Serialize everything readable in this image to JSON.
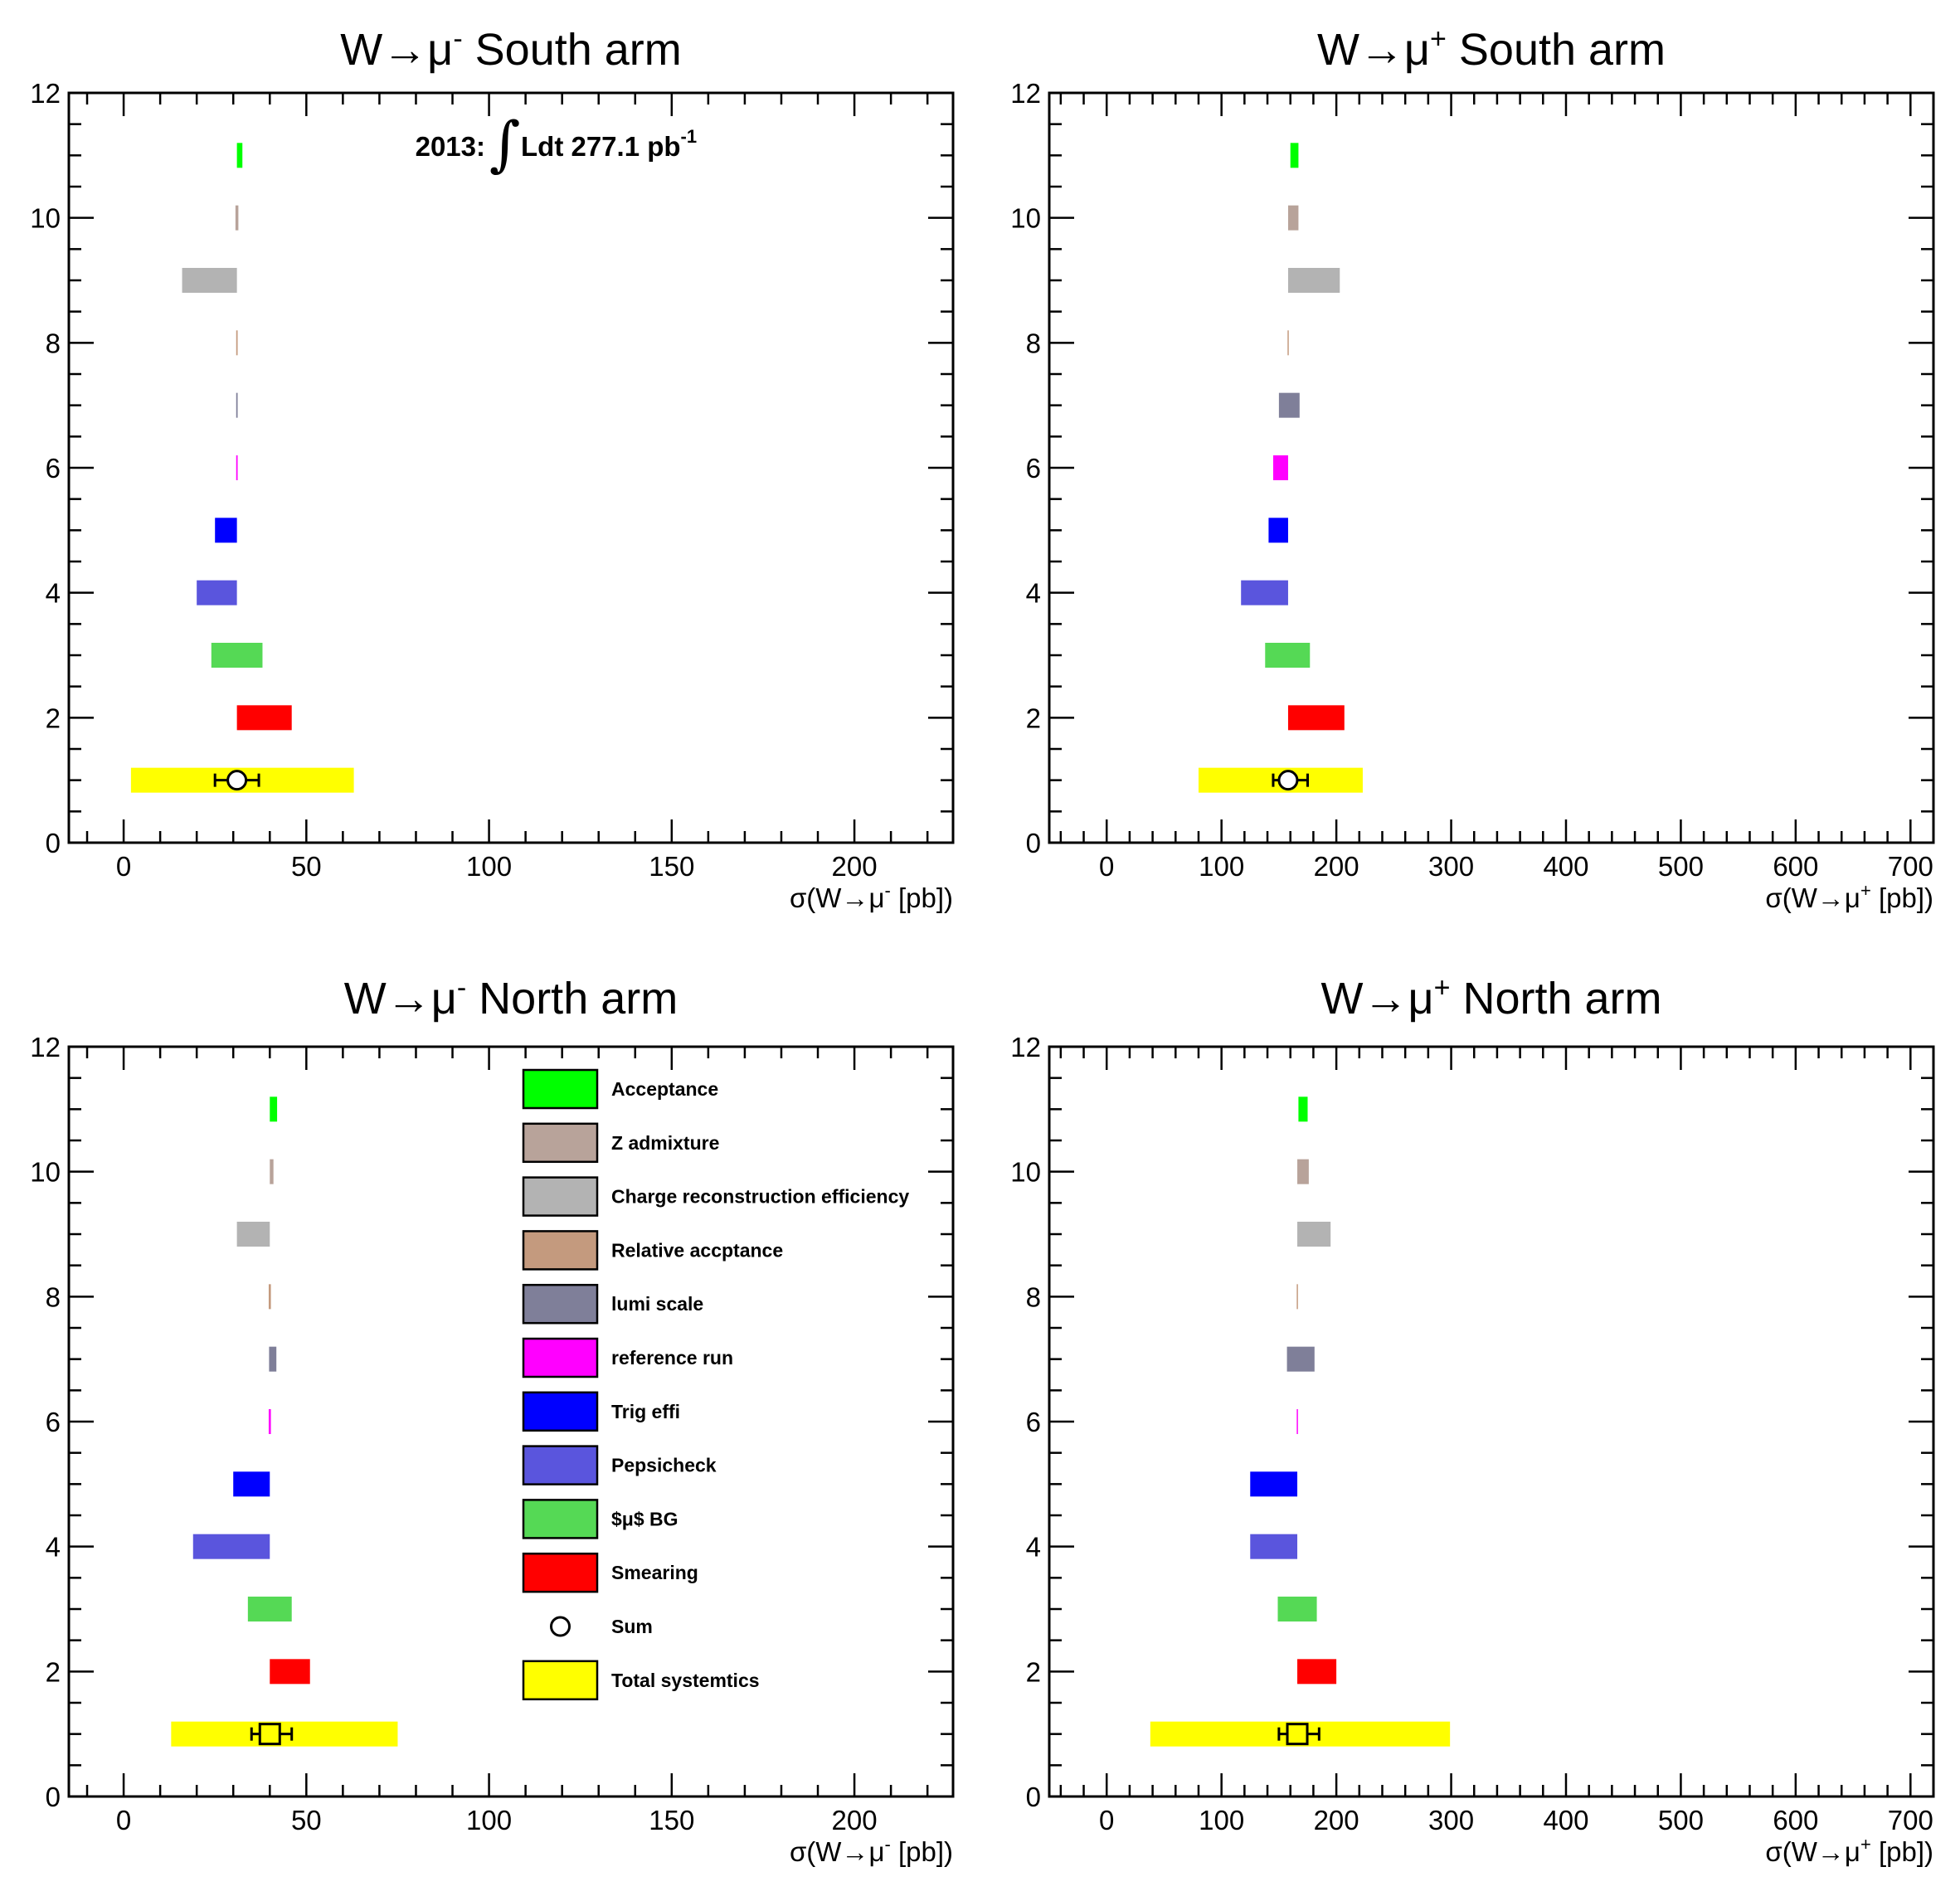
{
  "colors": {
    "acceptance": "#00ff00",
    "z_admixture": "#b8a39a",
    "charge_reco": "#b3b3b3",
    "relative_acc": "#c49a7e",
    "lumi_scale": "#7f7f99",
    "reference_run": "#ff00ff",
    "trig_effi": "#0000ff",
    "pepsicheck": "#5a55dd",
    "mu_bg": "#55d955",
    "smearing": "#ff0000",
    "total": "#ffff00"
  },
  "legend": {
    "entries": [
      {
        "label": "Acceptance",
        "color_key": "acceptance",
        "kind": "box"
      },
      {
        "label": "Z admixture",
        "color_key": "z_admixture",
        "kind": "box"
      },
      {
        "label": "Charge reconstruction efficiency",
        "color_key": "charge_reco",
        "kind": "box"
      },
      {
        "label": "Relative accptance",
        "color_key": "relative_acc",
        "kind": "box"
      },
      {
        "label": "lumi scale",
        "color_key": "lumi_scale",
        "kind": "box"
      },
      {
        "label": "reference run",
        "color_key": "reference_run",
        "kind": "box"
      },
      {
        "label": "Trig effi",
        "color_key": "trig_effi",
        "kind": "box"
      },
      {
        "label": "Pepsicheck",
        "color_key": "pepsicheck",
        "kind": "box"
      },
      {
        "label": "$μ$ BG",
        "color_key": "mu_bg",
        "kind": "box"
      },
      {
        "label": "Smearing",
        "color_key": "smearing",
        "kind": "box"
      },
      {
        "label": "Sum",
        "color_key": "",
        "kind": "circle"
      },
      {
        "label": "Total systemtics",
        "color_key": "total",
        "kind": "box"
      }
    ]
  },
  "lumi_annotation": {
    "year": "2013:",
    "integral_sign": "∫",
    "text": "Ldt 277.1 pb",
    "exponent": "-1"
  },
  "chart_data": [
    {
      "type": "bar",
      "title_prefix": "W→μ",
      "title_sup": "-",
      "title_suffix": " South arm",
      "xlabel_prefix": "σ(W→μ",
      "xlabel_sup": "-",
      "xlabel_suffix": " [pb])",
      "xlim": [
        -15,
        227
      ],
      "ylim": [
        0,
        12
      ],
      "xticks": [
        0,
        50,
        100,
        150,
        200
      ],
      "xminor_step": 10,
      "yticks": [
        0,
        2,
        4,
        6,
        8,
        10,
        12
      ],
      "yminor_step": 0.5,
      "center": 31,
      "marker": "circle",
      "error": [
        25,
        37
      ],
      "bars": [
        {
          "y": 1,
          "lo": 2,
          "hi": 63,
          "color_key": "total"
        },
        {
          "y": 2,
          "lo": 31,
          "hi": 46,
          "color_key": "smearing"
        },
        {
          "y": 3,
          "lo": 24,
          "hi": 38,
          "color_key": "mu_bg"
        },
        {
          "y": 4,
          "lo": 20,
          "hi": 31,
          "color_key": "pepsicheck"
        },
        {
          "y": 5,
          "lo": 25,
          "hi": 31,
          "color_key": "trig_effi"
        },
        {
          "y": 6,
          "lo": 30.8,
          "hi": 31.2,
          "color_key": "reference_run"
        },
        {
          "y": 7,
          "lo": 30.8,
          "hi": 31.2,
          "color_key": "lumi_scale"
        },
        {
          "y": 8,
          "lo": 30.8,
          "hi": 31.2,
          "color_key": "relative_acc"
        },
        {
          "y": 9,
          "lo": 16,
          "hi": 31,
          "color_key": "charge_reco"
        },
        {
          "y": 10,
          "lo": 30.6,
          "hi": 31.4,
          "color_key": "z_admixture"
        },
        {
          "y": 11,
          "lo": 31,
          "hi": 32.5,
          "color_key": "acceptance"
        }
      ]
    },
    {
      "type": "bar",
      "title_prefix": "W→μ",
      "title_sup": "+",
      "title_suffix": " South arm",
      "xlabel_prefix": "σ(W→μ",
      "xlabel_sup": "+",
      "xlabel_suffix": " [pb])",
      "xlim": [
        -50,
        720
      ],
      "ylim": [
        0,
        12
      ],
      "xticks": [
        0,
        100,
        200,
        300,
        400,
        500,
        600,
        700
      ],
      "xminor_step": 20,
      "yticks": [
        0,
        2,
        4,
        6,
        8,
        10,
        12
      ],
      "yminor_step": 0.5,
      "center": 158,
      "marker": "circle",
      "error": [
        145,
        175
      ],
      "bars": [
        {
          "y": 1,
          "lo": 80,
          "hi": 223,
          "color_key": "total"
        },
        {
          "y": 2,
          "lo": 158,
          "hi": 207,
          "color_key": "smearing"
        },
        {
          "y": 3,
          "lo": 138,
          "hi": 177,
          "color_key": "mu_bg"
        },
        {
          "y": 4,
          "lo": 117,
          "hi": 158,
          "color_key": "pepsicheck"
        },
        {
          "y": 5,
          "lo": 141,
          "hi": 158,
          "color_key": "trig_effi"
        },
        {
          "y": 6,
          "lo": 145,
          "hi": 158,
          "color_key": "reference_run"
        },
        {
          "y": 7,
          "lo": 150,
          "hi": 168,
          "color_key": "lumi_scale"
        },
        {
          "y": 8,
          "lo": 157.5,
          "hi": 158.5,
          "color_key": "relative_acc"
        },
        {
          "y": 9,
          "lo": 158,
          "hi": 203,
          "color_key": "charge_reco"
        },
        {
          "y": 10,
          "lo": 158,
          "hi": 167,
          "color_key": "z_admixture"
        },
        {
          "y": 11,
          "lo": 160,
          "hi": 167,
          "color_key": "acceptance"
        }
      ]
    },
    {
      "type": "bar",
      "title_prefix": "W→μ",
      "title_sup": "-",
      "title_suffix": " North arm",
      "xlabel_prefix": "σ(W→μ",
      "xlabel_sup": "-",
      "xlabel_suffix": " [pb])",
      "xlim": [
        -15,
        227
      ],
      "ylim": [
        0,
        12
      ],
      "xticks": [
        0,
        50,
        100,
        150,
        200
      ],
      "xminor_step": 10,
      "yticks": [
        0,
        2,
        4,
        6,
        8,
        10,
        12
      ],
      "yminor_step": 0.5,
      "center": 40,
      "marker": "square",
      "error": [
        35,
        46
      ],
      "bars": [
        {
          "y": 1,
          "lo": 13,
          "hi": 75,
          "color_key": "total"
        },
        {
          "y": 2,
          "lo": 40,
          "hi": 51,
          "color_key": "smearing"
        },
        {
          "y": 3,
          "lo": 34,
          "hi": 46,
          "color_key": "mu_bg"
        },
        {
          "y": 4,
          "lo": 19,
          "hi": 40,
          "color_key": "pepsicheck"
        },
        {
          "y": 5,
          "lo": 30,
          "hi": 40,
          "color_key": "trig_effi"
        },
        {
          "y": 6,
          "lo": 39.7,
          "hi": 40.3,
          "color_key": "reference_run"
        },
        {
          "y": 7,
          "lo": 39.8,
          "hi": 41.8,
          "color_key": "lumi_scale"
        },
        {
          "y": 8,
          "lo": 39.7,
          "hi": 40.3,
          "color_key": "relative_acc"
        },
        {
          "y": 9,
          "lo": 31,
          "hi": 40,
          "color_key": "charge_reco"
        },
        {
          "y": 10,
          "lo": 40,
          "hi": 41,
          "color_key": "z_admixture"
        },
        {
          "y": 11,
          "lo": 40,
          "hi": 42,
          "color_key": "acceptance"
        }
      ]
    },
    {
      "type": "bar",
      "title_prefix": "W→μ",
      "title_sup": "+",
      "title_suffix": " North arm",
      "xlabel_prefix": "σ(W→μ",
      "xlabel_sup": "+",
      "xlabel_suffix": " [pb])",
      "xlim": [
        -50,
        720
      ],
      "ylim": [
        0,
        12
      ],
      "xticks": [
        0,
        100,
        200,
        300,
        400,
        500,
        600,
        700
      ],
      "xminor_step": 20,
      "yticks": [
        0,
        2,
        4,
        6,
        8,
        10,
        12
      ],
      "yminor_step": 0.5,
      "center": 166,
      "marker": "square",
      "error": [
        150,
        185
      ],
      "bars": [
        {
          "y": 1,
          "lo": 38,
          "hi": 299,
          "color_key": "total"
        },
        {
          "y": 2,
          "lo": 166,
          "hi": 200,
          "color_key": "smearing"
        },
        {
          "y": 3,
          "lo": 149,
          "hi": 183,
          "color_key": "mu_bg"
        },
        {
          "y": 4,
          "lo": 125,
          "hi": 166,
          "color_key": "pepsicheck"
        },
        {
          "y": 5,
          "lo": 125,
          "hi": 166,
          "color_key": "trig_effi"
        },
        {
          "y": 6,
          "lo": 165.5,
          "hi": 166.5,
          "color_key": "reference_run"
        },
        {
          "y": 7,
          "lo": 157,
          "hi": 181,
          "color_key": "lumi_scale"
        },
        {
          "y": 8,
          "lo": 165.5,
          "hi": 166.5,
          "color_key": "relative_acc"
        },
        {
          "y": 9,
          "lo": 166,
          "hi": 195,
          "color_key": "charge_reco"
        },
        {
          "y": 10,
          "lo": 166,
          "hi": 176,
          "color_key": "z_admixture"
        },
        {
          "y": 11,
          "lo": 167,
          "hi": 175,
          "color_key": "acceptance"
        }
      ]
    }
  ]
}
